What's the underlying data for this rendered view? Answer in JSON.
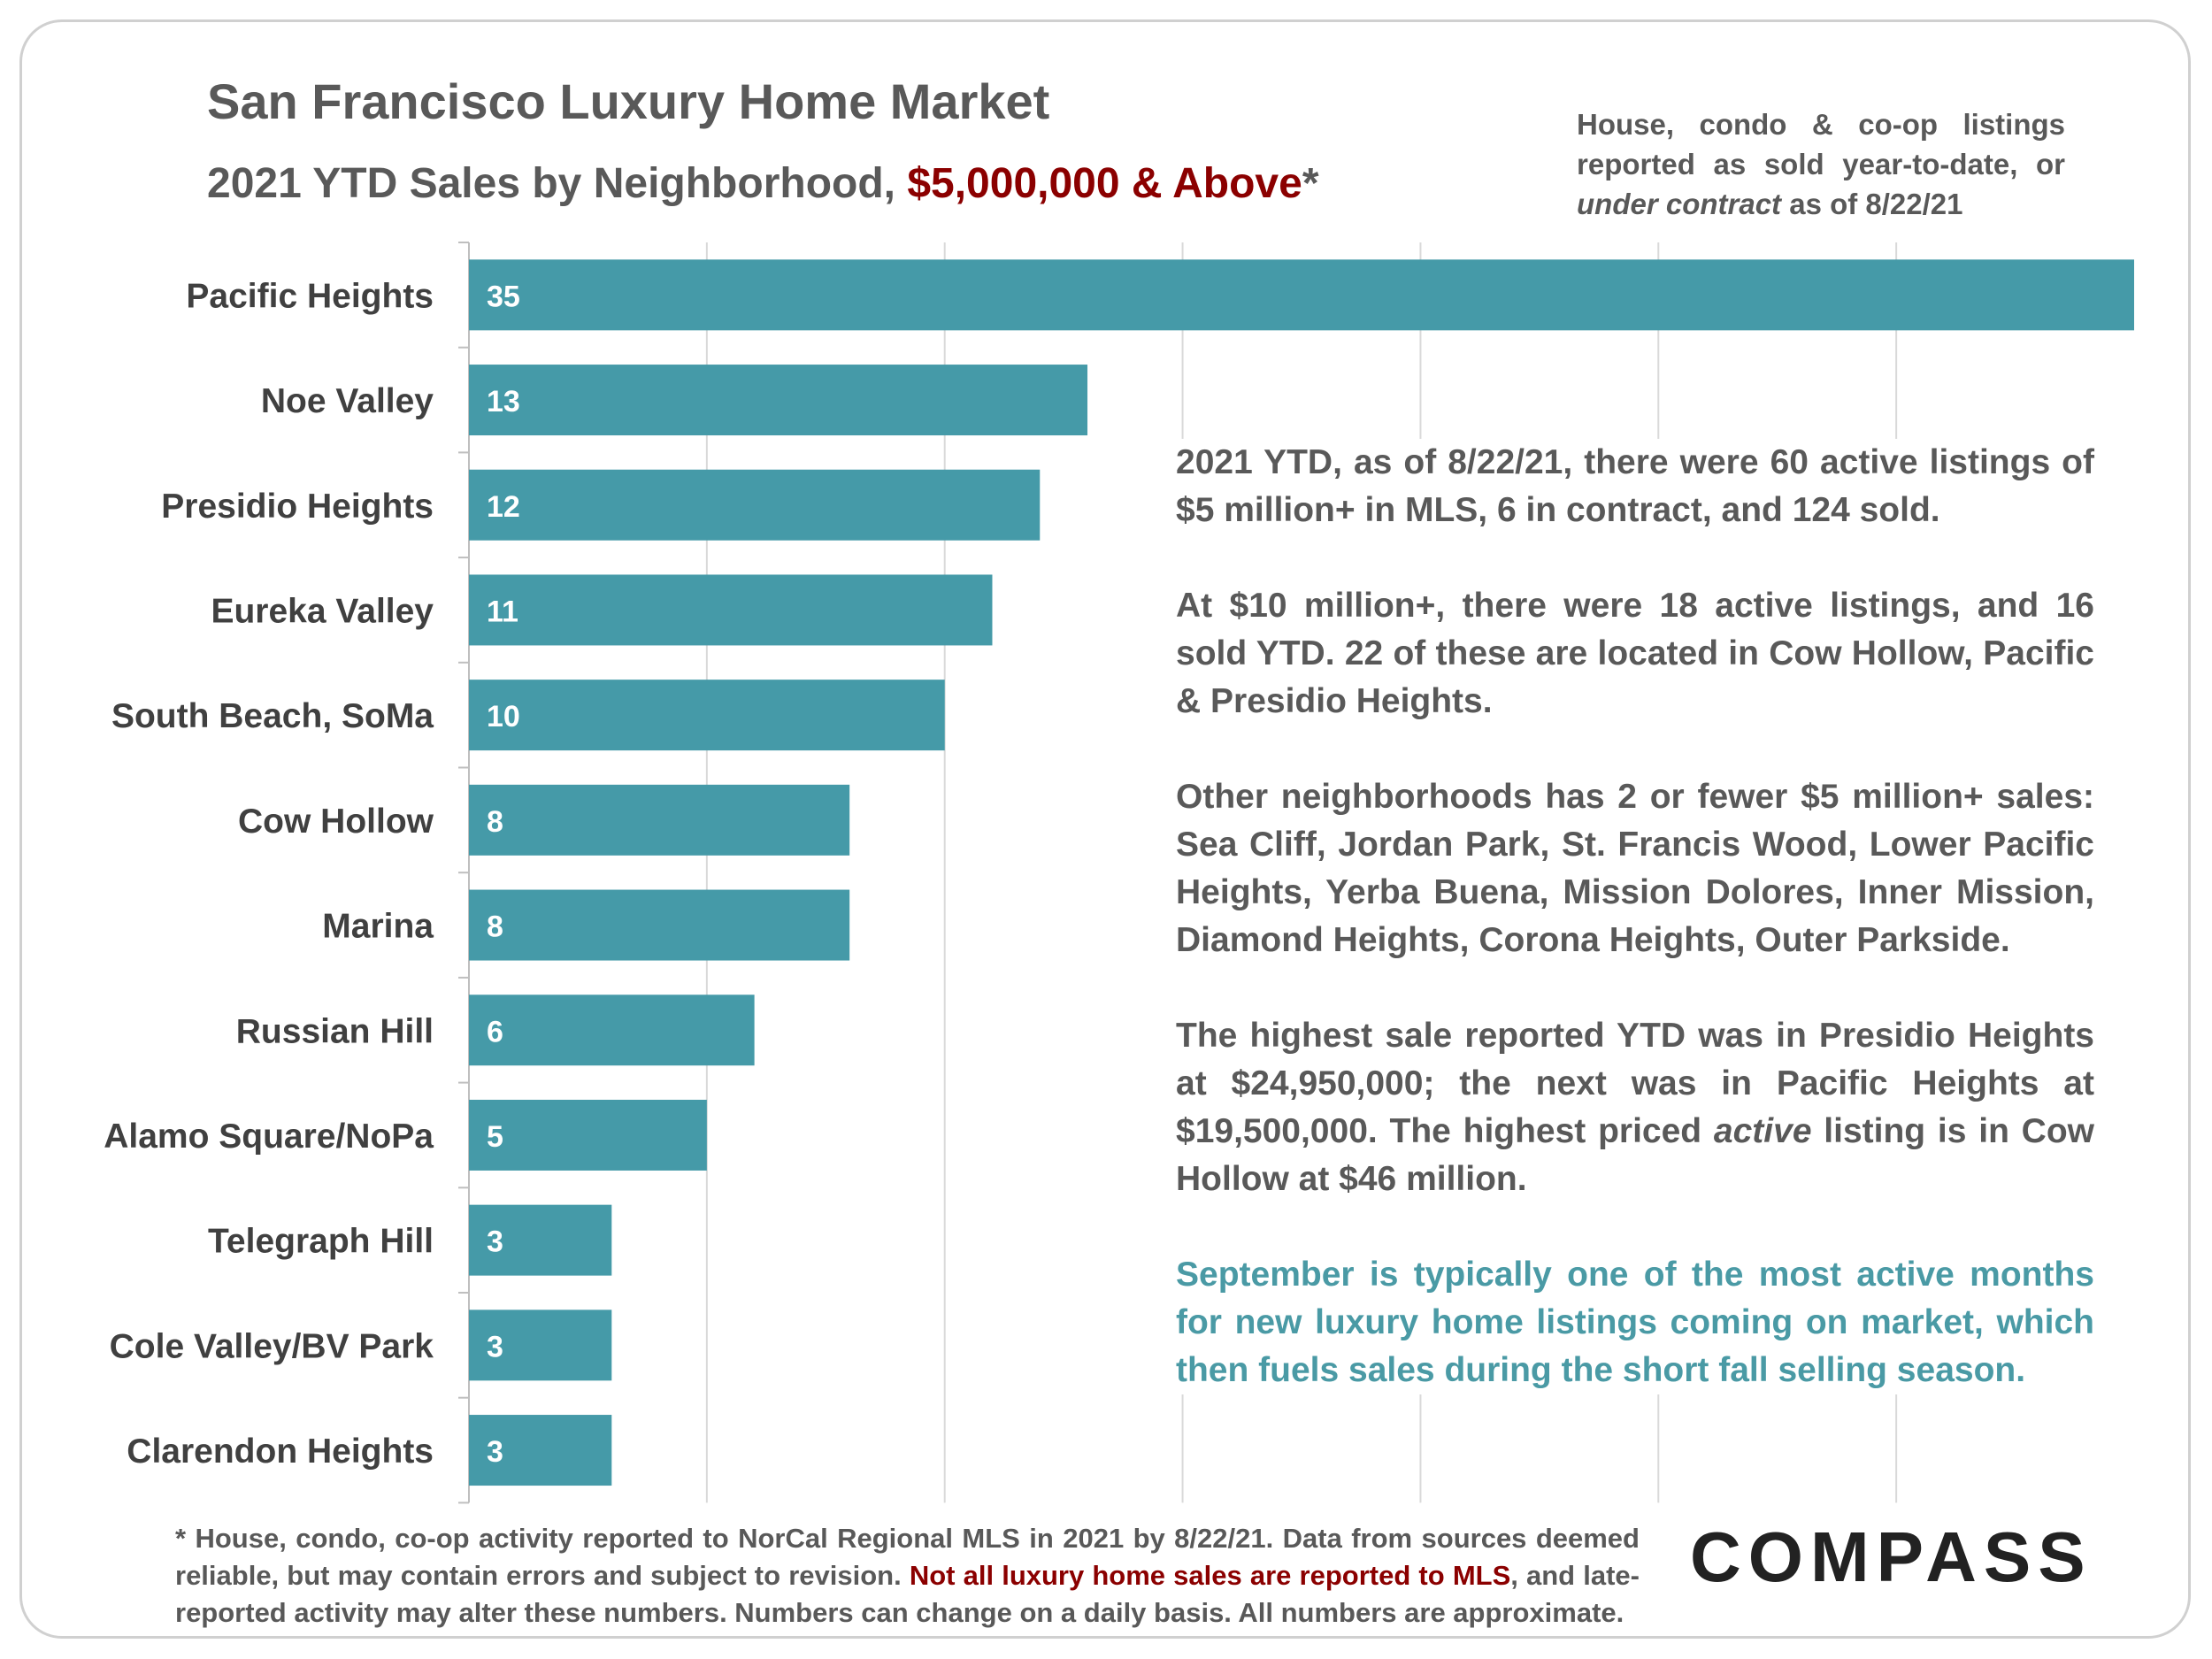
{
  "header": {
    "title": "San Francisco Luxury Home Market",
    "subtitle_prefix": "2021 YTD Sales by Neighborhood, ",
    "subtitle_highlight": "$5,000,000 & Above",
    "subtitle_suffix": "*",
    "note_part1": "House, condo & co-op listings reported as sold year-to-date, or ",
    "note_italic": "under contract",
    "note_part2": " as of 8/22/21"
  },
  "chart_data": {
    "type": "bar",
    "orientation": "horizontal",
    "title": "2021 YTD Sales by Neighborhood, $5,000,000 & Above",
    "categories": [
      "Pacific Heights",
      "Noe Valley",
      "Presidio Heights",
      "Eureka Valley",
      "South Beach, SoMa",
      "Cow Hollow",
      "Marina",
      "Russian Hill",
      "Alamo Square/NoPa",
      "Telegraph Hill",
      "Cole Valley/BV Park",
      "Clarendon Heights"
    ],
    "values": [
      35,
      13,
      12,
      11,
      10,
      8,
      8,
      6,
      5,
      3,
      3,
      3
    ],
    "xlim": [
      0,
      35
    ],
    "grid": true,
    "bar_color": "#459aa8"
  },
  "commentary": {
    "p1": "2021 YTD, as of 8/22/21, there were 60 active listings of $5 million+ in MLS, 6 in contract, and 124 sold.",
    "p2": "At $10 million+, there were 18 active listings, and 16 sold YTD. 22 of these are located in Cow Hollow, Pacific & Presidio Heights.",
    "p3": "Other neighborhoods has 2 or fewer $5 million+ sales: Sea Cliff, Jordan Park, St. Francis Wood, Lower Pacific Heights, Yerba Buena, Mission Dolores, Inner Mission, Diamond Heights, Corona Heights, Outer Parkside.",
    "p4_part1": "The highest sale reported YTD was in Presidio Heights at $24,950,000; the next was in Pacific Heights at $19,500,000.  The highest priced ",
    "p4_italic": "active",
    "p4_part2": " listing is in Cow Hollow at $46 million.",
    "p5": "September is typically one of the most active months for new luxury home listings coming on market, which then fuels sales during the short fall selling season."
  },
  "footer": {
    "part1": "* House, condo, co-op activity reported to NorCal Regional MLS in 2021 by 8/22/21. Data from sources deemed reliable, but may contain errors and subject to revision. ",
    "highlight": "Not all luxury home sales are reported to MLS",
    "part2": ", and late-reported activity may alter these numbers. Numbers can change on a daily basis. All numbers are approximate.",
    "logo": "COMPASS"
  },
  "colors": {
    "accent_red": "#8b0000",
    "teal_text": "#4a9aa5",
    "bar": "#459aa8"
  }
}
